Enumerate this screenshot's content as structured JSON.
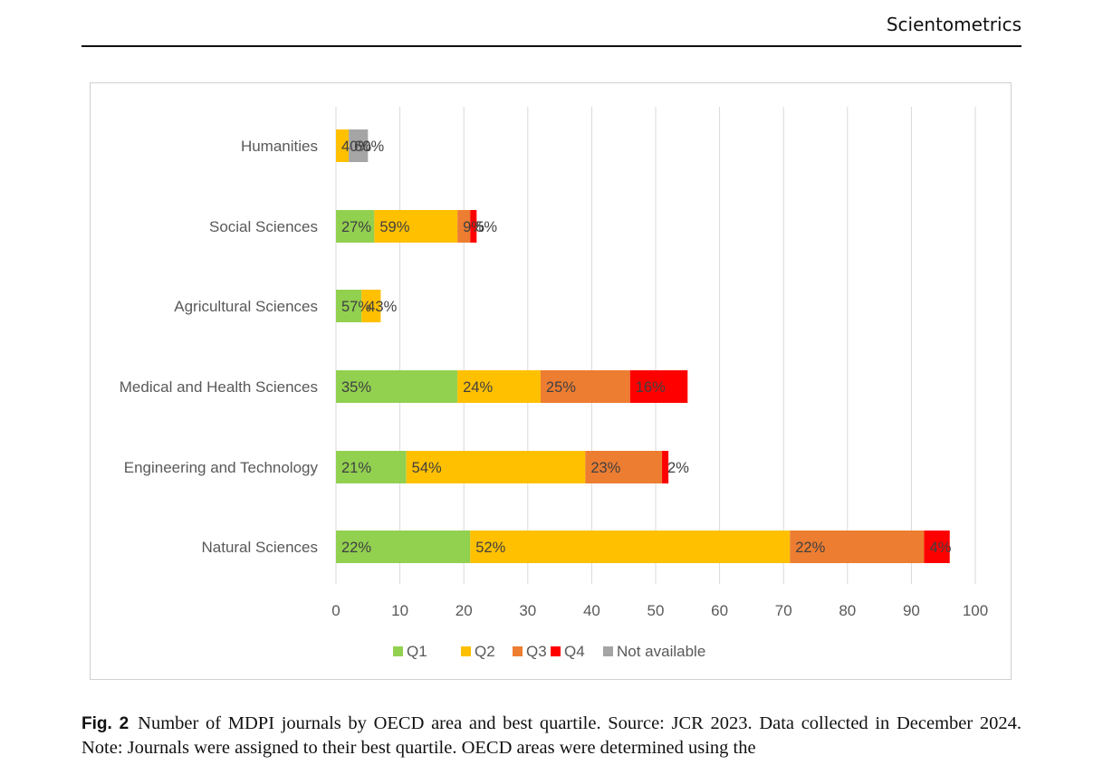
{
  "header": {
    "journal": "Scientometrics"
  },
  "caption": {
    "label": "Fig. 2",
    "text": "Number of MDPI journals by OECD area and best quartile. Source: JCR 2023. Data collected in December 2024. Note: Journals were assigned to their best quartile. OECD areas were determined using the"
  },
  "chart_data": {
    "type": "bar",
    "orientation": "horizontal",
    "stacked": true,
    "categories": [
      "Humanities",
      "Social Sciences",
      "Agricultural Sciences",
      "Medical and Health Sciences",
      "Engineering and Technology",
      "Natural Sciences"
    ],
    "series": [
      {
        "name": "Q1",
        "color": "#92d050",
        "values": [
          0,
          6,
          4,
          19,
          11,
          21
        ],
        "labels": [
          "",
          "27%",
          "57%",
          "35%",
          "21%",
          "22%"
        ]
      },
      {
        "name": "Q2",
        "color": "#ffc000",
        "values": [
          2,
          13,
          3,
          13,
          28,
          50
        ],
        "labels": [
          "40%",
          "59%",
          "43%",
          "24%",
          "54%",
          "52%"
        ]
      },
      {
        "name": "Q3",
        "color": "#ed7d31",
        "values": [
          0,
          2,
          0,
          14,
          12,
          21
        ],
        "labels": [
          "",
          "9%",
          "",
          "25%",
          "23%",
          "22%"
        ]
      },
      {
        "name": "Q4",
        "color": "#ff0000",
        "values": [
          0,
          1,
          0,
          9,
          1,
          4
        ],
        "labels": [
          "",
          "5%",
          "",
          "16%",
          "2%",
          "4%"
        ]
      },
      {
        "name": "Not available",
        "color": "#a5a5a5",
        "values": [
          3,
          0,
          0,
          0,
          0,
          0
        ],
        "labels": [
          "60%",
          "",
          "",
          "",
          "",
          ""
        ]
      }
    ],
    "xlim": [
      0,
      100
    ],
    "xticks": [
      0,
      10,
      20,
      30,
      40,
      50,
      60,
      70,
      80,
      90,
      100
    ],
    "grid": true,
    "legend": "bottom",
    "title": "",
    "xlabel": "",
    "ylabel": ""
  }
}
